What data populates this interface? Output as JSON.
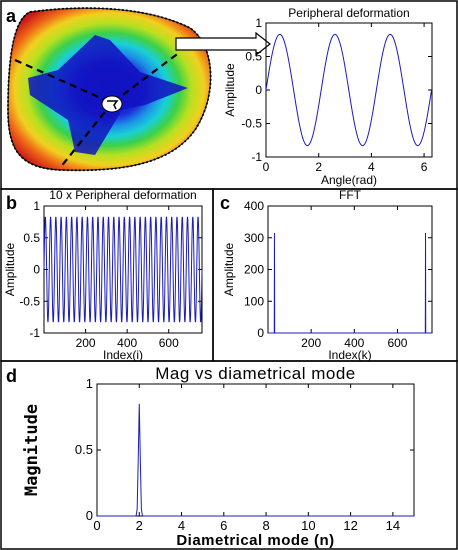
{
  "figure": {
    "panel_labels": [
      "a",
      "b",
      "c",
      "d"
    ]
  },
  "colors": {
    "line": "#1c1cb8",
    "panel_border": "#000000"
  },
  "chart_data": [
    {
      "id": "a",
      "type": "line",
      "title": "Peripheral deformation",
      "xlabel": "Angle(rad)",
      "ylabel": "Amplitude",
      "xlim": [
        0,
        6.3
      ],
      "ylim": [
        -1,
        1
      ],
      "xticks": [
        0,
        2,
        4,
        6
      ],
      "yticks": [
        -1,
        -0.5,
        0,
        0.5,
        1
      ],
      "function": "sin(3x)",
      "amplitude": 0.83,
      "cycles": 3,
      "x": [
        0,
        0.52,
        1.05,
        1.57,
        2.09,
        2.62,
        3.14,
        3.67,
        4.19,
        4.71,
        5.24,
        5.76,
        6.28
      ],
      "y": [
        0,
        0.83,
        0,
        -0.83,
        0,
        0.83,
        0,
        -0.83,
        0,
        0.83,
        0,
        -0.83,
        0
      ]
    },
    {
      "id": "b",
      "type": "line",
      "title": "10 x Peripheral deformation",
      "xlabel": "Index(i)",
      "ylabel": "Amplitude",
      "xlim": [
        0,
        760
      ],
      "ylim": [
        -1,
        1
      ],
      "xticks": [
        200,
        400,
        600
      ],
      "yticks": [
        -1,
        -0.5,
        0,
        0.5,
        1
      ],
      "amplitude": 0.83,
      "cycles": 30
    },
    {
      "id": "c",
      "type": "line",
      "title": "FFT",
      "xlabel": "Index(k)",
      "ylabel": "Amplitude",
      "xlim": [
        0,
        760
      ],
      "ylim": [
        0,
        400
      ],
      "xticks": [
        200,
        400,
        600
      ],
      "yticks": [
        0,
        100,
        200,
        300,
        400
      ],
      "peaks": [
        {
          "x": 30,
          "y": 315
        },
        {
          "x": 730,
          "y": 315
        }
      ]
    },
    {
      "id": "d",
      "type": "line",
      "title": "Mag vs diametrical mode",
      "xlabel": "Diametrical mode (n)",
      "ylabel": "Magnitude",
      "xlim": [
        0,
        15
      ],
      "ylim": [
        0,
        1
      ],
      "xticks": [
        0,
        2,
        4,
        6,
        8,
        10,
        12,
        14
      ],
      "yticks": [
        0,
        0.5,
        1
      ],
      "peaks": [
        {
          "x": 2,
          "y": 0.85
        }
      ]
    }
  ]
}
